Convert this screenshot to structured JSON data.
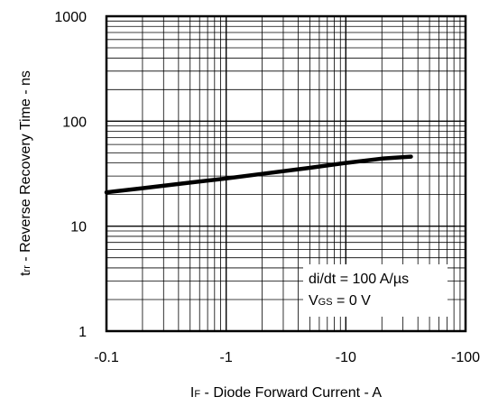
{
  "chart_data": {
    "type": "line",
    "title": "",
    "xlabel": {
      "prefix": "I",
      "sub": "F",
      "suffix": " - Diode Forward Current - A"
    },
    "ylabel": {
      "prefix": "t",
      "sub": "rr",
      "suffix": " - Reverse Recovery Time - ns"
    },
    "x_scale": "log",
    "y_scale": "log",
    "x_note": "x axis shows negative current magnitudes; plotted on log scale of |I_F|",
    "xlim": [
      -0.1,
      -100
    ],
    "ylim": [
      1,
      1000
    ],
    "x_tick_labels": [
      "-0.1",
      "-1",
      "-10",
      "-100"
    ],
    "y_tick_labels": [
      "1",
      "10",
      "100",
      "1000"
    ],
    "grid": true,
    "series": [
      {
        "x": [
          -0.1,
          -0.2,
          -0.5,
          -1,
          -2,
          -5,
          -10,
          -20,
          -35
        ],
        "y": [
          21,
          23,
          26,
          28.5,
          31.5,
          36,
          40,
          44,
          46
        ]
      }
    ],
    "annotations": {
      "line1": "di/dt = 100 A/µs",
      "line2": {
        "prefix": "V",
        "sub": "GS",
        "suffix": " = 0 V"
      }
    }
  }
}
